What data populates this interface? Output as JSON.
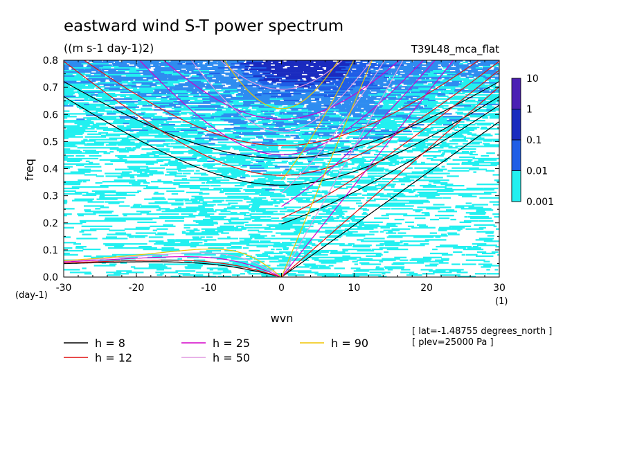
{
  "chart_data": {
    "type": "heatmap",
    "title": "eastward wind S-T power spectrum",
    "subtitle": "((m s-1 day-1)2)",
    "run_label": "T39L48_mca_flat",
    "xlabel": "wvn",
    "ylabel": "freq",
    "x_unit_label": "(1)",
    "y_unit_label": "(day-1)",
    "xlim": [
      -30,
      30
    ],
    "ylim": [
      0,
      0.8
    ],
    "x_ticks": [
      -30,
      -20,
      -10,
      0,
      10,
      20,
      30
    ],
    "x_tick_labels": [
      "-30",
      "-20",
      "-10",
      "0",
      "10",
      "20",
      "30"
    ],
    "y_ticks": [
      0,
      0.1,
      0.2,
      0.3,
      0.4,
      0.5,
      0.6,
      0.7,
      0.8
    ],
    "y_tick_labels": [
      "0.0",
      "0.1",
      "0.2",
      "0.3",
      "0.4",
      "0.5",
      "0.6",
      "0.7",
      "0.8"
    ],
    "colorbar": {
      "levels": [
        "10",
        "1",
        "0.1",
        "0.01",
        "0.001"
      ],
      "colors": [
        "#4b1fb4",
        "#1a2bbf",
        "#1f5ee6",
        "#2e8cf0",
        "#22f0f0"
      ]
    },
    "dispersion_curves": [
      {
        "label": "h =  8",
        "h": 8,
        "color": "#000000"
      },
      {
        "label": "h = 12",
        "h": 12,
        "color": "#e01010"
      },
      {
        "label": "h = 25",
        "h": 25,
        "color": "#d400c8"
      },
      {
        "label": "h = 50",
        "h": 50,
        "color": "#e098e0"
      },
      {
        "label": "h = 90",
        "h": 90,
        "color": "#f0c400"
      }
    ],
    "notes": [
      "[ lat=-1.48755 degrees_north ]",
      "[ plev=25000 Pa ]"
    ]
  }
}
